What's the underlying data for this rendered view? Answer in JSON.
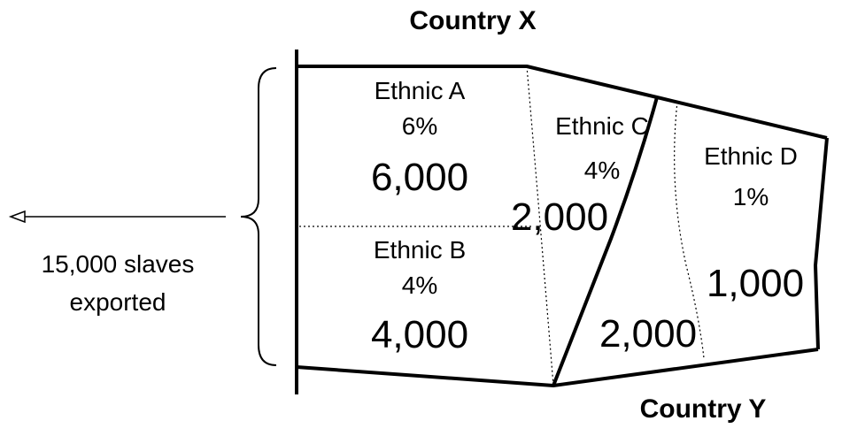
{
  "country_x_label": "Country X",
  "country_y_label": "Country Y",
  "exports": {
    "line1": "15,000 slaves",
    "line2": "exported"
  },
  "regions": {
    "ethnic_a": {
      "name": "Ethnic A",
      "share": "6%",
      "count": "6,000"
    },
    "ethnic_b": {
      "name": "Ethnic B",
      "share": "4%",
      "count": "4,000"
    },
    "ethnic_c": {
      "name": "Ethnic C",
      "share": "4%",
      "count_x": "2,000",
      "count_y": "2,000"
    },
    "ethnic_d": {
      "name": "Ethnic D",
      "share": "1%",
      "count": "1,000"
    }
  }
}
